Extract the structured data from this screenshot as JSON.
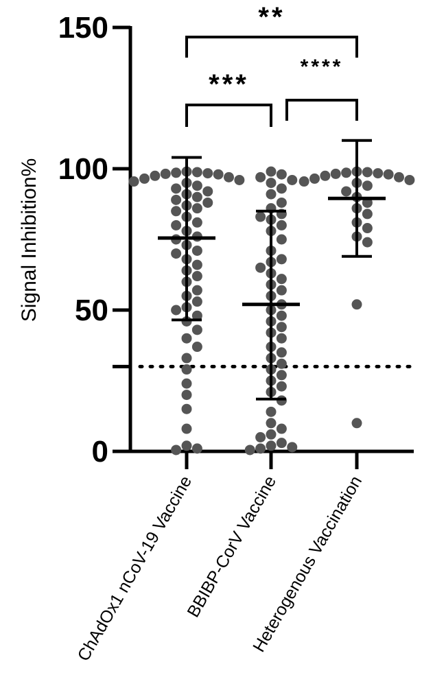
{
  "chart_data": {
    "type": "scatter",
    "title": "",
    "xlabel": "",
    "ylabel": "Signal Inhibition%",
    "ylim": [
      0,
      150
    ],
    "yticks": [
      0,
      50,
      100,
      150
    ],
    "grid": false,
    "threshold_line": {
      "y": 30,
      "style": "dotted"
    },
    "categories": [
      "ChAdOx1 nCoV-19 Vaccine",
      "BBIBP-CorV Vaccine",
      "Heterogenous Vaccination"
    ],
    "series": [
      {
        "category": "ChAdOx1 nCoV-19 Vaccine",
        "mean": 75.5,
        "error_upper": 104,
        "error_lower": 46.5,
        "points": [
          99,
          98.8,
          98.6,
          98.4,
          98.2,
          98,
          97.5,
          97,
          96.5,
          96,
          95.5,
          95,
          94,
          93,
          92,
          91,
          90,
          89,
          88,
          87,
          86,
          85,
          83,
          81,
          80,
          78,
          76,
          75,
          73,
          71,
          70,
          68,
          66,
          64,
          62,
          60,
          57,
          55,
          53,
          51,
          50,
          48,
          46,
          43,
          40,
          37,
          33,
          29,
          24,
          20,
          15,
          8,
          2,
          1,
          0.5
        ]
      },
      {
        "category": "BBIBP-CorV Vaccine",
        "mean": 52,
        "error_upper": 85,
        "error_lower": 18.5,
        "points": [
          99,
          98,
          97,
          96,
          95,
          93,
          91,
          88,
          86,
          84,
          83,
          82,
          80,
          78,
          75,
          71,
          68,
          67,
          65,
          63,
          61,
          59,
          57,
          55,
          52,
          50,
          48,
          46,
          44,
          42,
          40,
          37,
          35,
          33,
          31,
          29,
          27,
          25,
          23,
          21,
          18,
          14,
          10,
          8,
          6,
          5,
          3,
          2,
          1.5,
          1,
          0.5
        ]
      },
      {
        "category": "Heterogenous Vaccination",
        "mean": 89.5,
        "error_upper": 110,
        "error_lower": 69,
        "points": [
          99,
          98.8,
          98.6,
          98.4,
          98.2,
          98,
          97.5,
          97,
          96.5,
          96,
          95.5,
          95,
          94,
          92,
          90,
          88,
          86,
          84,
          81,
          79,
          76,
          74,
          52,
          10
        ]
      }
    ],
    "comparisons": [
      {
        "from": "ChAdOx1 nCoV-19 Vaccine",
        "to": "Heterogenous Vaccination",
        "label": "**"
      },
      {
        "from": "ChAdOx1 nCoV-19 Vaccine",
        "to": "BBIBP-CorV Vaccine",
        "label": "***"
      },
      {
        "from": "BBIBP-CorV Vaccine",
        "to": "Heterogenous Vaccination",
        "label": "****"
      }
    ],
    "colors": {
      "points": "#555555",
      "axis": "#000000",
      "error_bars": "#000000"
    }
  }
}
